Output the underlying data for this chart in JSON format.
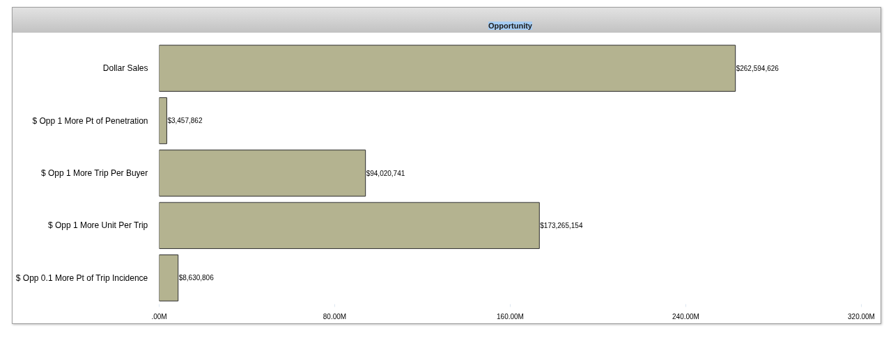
{
  "chart_data": {
    "type": "bar",
    "orientation": "horizontal",
    "title": "Opportunity",
    "categories": [
      "Dollar Sales",
      "$ Opp 1 More Pt of Penetration",
      "$ Opp 1 More Trip Per Buyer",
      "$ Opp 1 More Unit Per Trip",
      "$ Opp 0.1 More Pt of Trip Incidence"
    ],
    "values": [
      262594626,
      3457862,
      94020741,
      173265154,
      8630806
    ],
    "value_labels": [
      "$262,594,626",
      "$3,457,862",
      "$94,020,741",
      "$173,265,154",
      "$8,630,806"
    ],
    "color": "#b4b390",
    "xlim": [
      0,
      320000000
    ],
    "xticks": [
      {
        "value": 0,
        "label": ".00M"
      },
      {
        "value": 80000000,
        "label": "80.00M"
      },
      {
        "value": 160000000,
        "label": "160.00M"
      },
      {
        "value": 240000000,
        "label": "240.00M"
      },
      {
        "value": 320000000,
        "label": "320.00M"
      }
    ]
  }
}
